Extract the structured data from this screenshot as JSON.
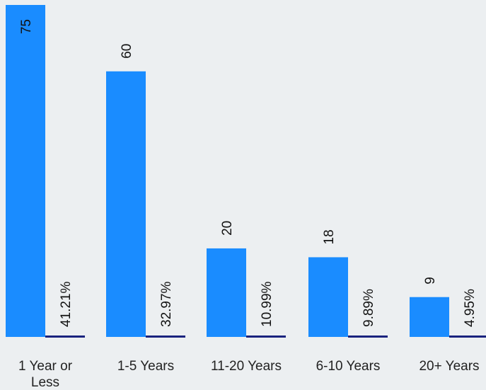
{
  "chart_data": {
    "type": "bar",
    "title": "",
    "xlabel": "",
    "ylabel": "",
    "categories": [
      [
        "1 Year or",
        "Less"
      ],
      [
        "1-5 Years"
      ],
      [
        "11-20 Years"
      ],
      [
        "6-10 Years"
      ],
      [
        "20+ Years"
      ]
    ],
    "series": [
      {
        "values": [
          75,
          60,
          20,
          18,
          9
        ],
        "labels": [
          "75",
          "60",
          "20",
          "18",
          "9"
        ],
        "color": "#1a8cff"
      },
      {
        "values": [
          41.21,
          32.97,
          10.99,
          9.89,
          4.95
        ],
        "labels": [
          "41.21%",
          "32.97%",
          "10.99%",
          "9.89%",
          "4.95%"
        ],
        "color": "#1a237e"
      }
    ],
    "grid": false,
    "legend": "none"
  },
  "colors": {
    "background": "#eceff1",
    "count_bar": "#1a8cff",
    "percent_bar": "#1a237e"
  }
}
